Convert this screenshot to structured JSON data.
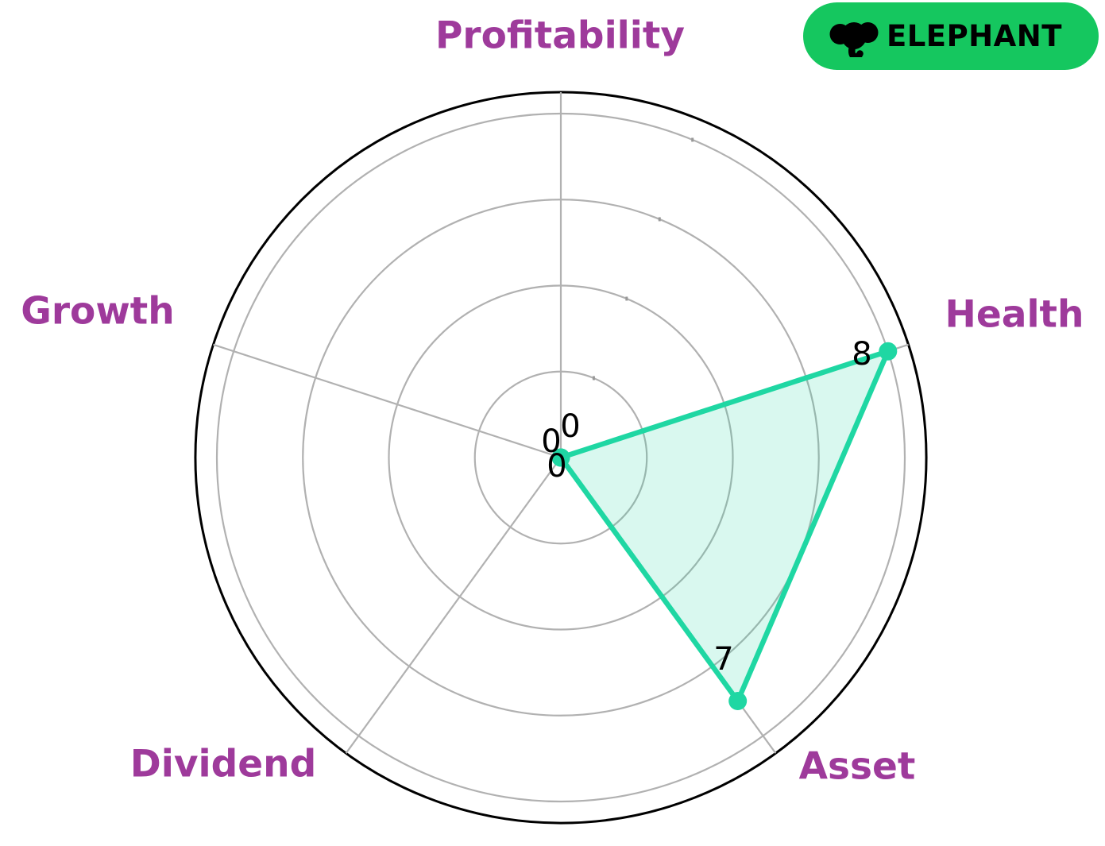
{
  "logo": {
    "brand": "ELEPHANT",
    "icon": "elephant-icon",
    "background_color": "#15c75f",
    "text_color": "#000000"
  },
  "chart_data": {
    "type": "radar",
    "categories": [
      "Profitability",
      "Health",
      "Asset",
      "Dividend",
      "Growth"
    ],
    "series": [
      {
        "name": "scores",
        "values": [
          0,
          8,
          7,
          0,
          0
        ]
      }
    ],
    "value_labels": [
      "0",
      "8",
      "7",
      "0",
      "0"
    ],
    "r_ticks": [
      2,
      4,
      6,
      8
    ],
    "r_max": 8.5,
    "start_angle_deg": 90,
    "direction": "clockwise",
    "grid": true,
    "legend": "none",
    "colors": {
      "line": "#1fd7a3",
      "fill": "rgba(31,215,163,0.17)",
      "marker": "#1fd7a3",
      "grid": "#b1b1b1",
      "tick_mark": "#999999",
      "outline": "#000000",
      "category_label": "#9e3a9b",
      "value_label": "#000000",
      "background": "#ffffff"
    }
  }
}
